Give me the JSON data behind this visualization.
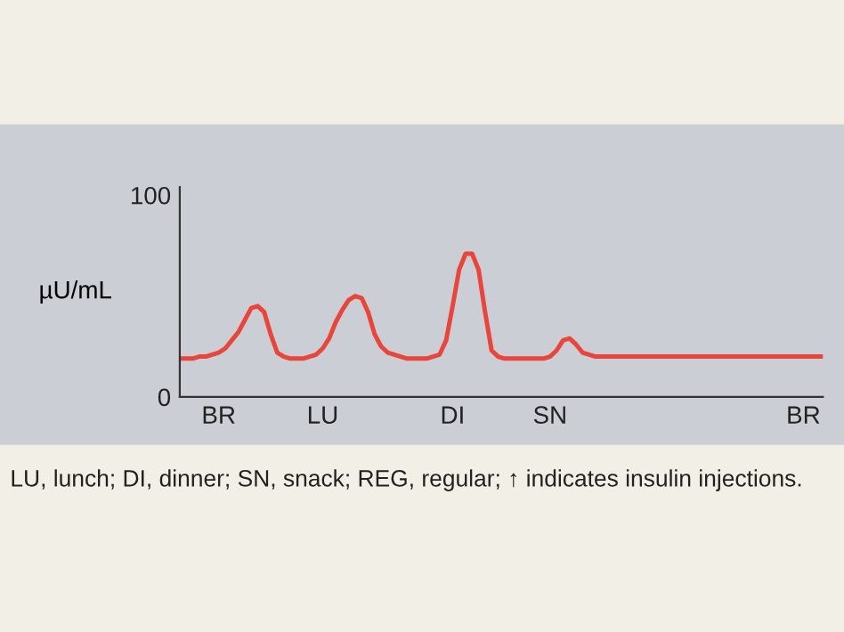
{
  "chart_data": {
    "type": "line",
    "ylabel": "µU/mL",
    "annotations": [
      "LU, lunch; DI, dinner; SN, snack; REG, regular; ↑ indicates insulin injections."
    ],
    "categories": [
      null,
      null,
      null,
      null,
      null,
      null,
      "BR",
      null,
      null,
      null,
      null,
      null,
      null,
      null,
      null,
      null,
      null,
      null,
      null,
      null,
      null,
      null,
      "LU",
      null,
      null,
      null,
      null,
      null,
      null,
      null,
      null,
      null,
      null,
      null,
      null,
      null,
      null,
      null,
      null,
      null,
      null,
      null,
      "DI",
      null,
      null,
      null,
      null,
      null,
      null,
      null,
      null,
      null,
      null,
      null,
      null,
      null,
      null,
      "SN",
      null,
      null,
      null,
      null,
      null,
      null,
      null,
      null,
      null,
      null,
      null,
      null,
      null,
      null,
      null,
      null,
      null,
      null,
      null,
      null,
      null,
      null,
      null,
      null,
      null,
      null,
      null,
      null,
      null,
      null,
      null,
      null,
      null,
      null,
      null,
      null,
      null,
      null,
      "BR",
      null,
      null,
      null
    ],
    "series": [
      {
        "color": "#e8463a",
        "values": [
          19,
          19,
          19,
          20,
          20,
          21,
          22,
          24,
          28,
          32,
          38,
          44,
          45,
          42,
          31,
          22,
          20,
          19,
          19,
          19,
          20,
          21,
          24,
          29,
          37,
          43,
          48,
          50,
          49,
          42,
          31,
          25,
          22,
          21,
          20,
          19,
          19,
          19,
          19,
          20,
          21,
          28,
          45,
          63,
          71,
          71,
          63,
          42,
          23,
          20,
          19,
          19,
          19,
          19,
          19,
          19,
          19,
          20,
          23,
          28,
          29,
          26,
          22,
          21,
          20,
          20,
          20,
          20,
          20,
          20,
          20,
          20,
          20,
          20,
          20,
          20,
          20,
          20,
          20,
          20,
          20,
          20,
          20,
          20,
          20,
          20,
          20,
          20,
          20,
          20,
          20,
          20,
          20,
          20,
          20,
          20,
          20,
          20,
          20,
          20
        ]
      }
    ],
    "ylim": [
      0,
      104
    ],
    "yticks": [
      0,
      100
    ],
    "grid": false,
    "legend": false,
    "marker": "none",
    "line_style": "solid"
  }
}
